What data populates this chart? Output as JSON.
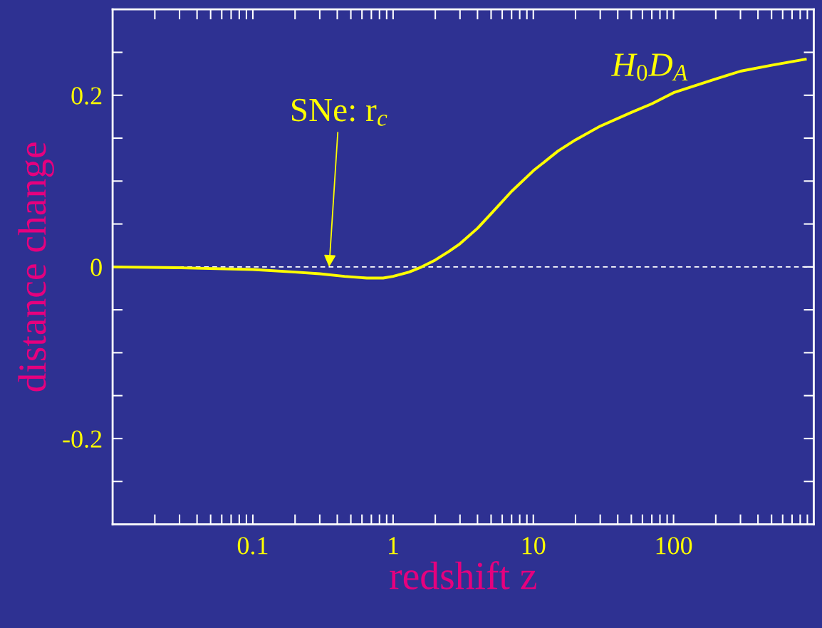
{
  "chart_data": {
    "type": "line",
    "xlabel": "redshift z",
    "ylabel": "distance change",
    "log": "x",
    "x": [
      0.01,
      0.03,
      0.1,
      0.2,
      0.3,
      0.45,
      0.65,
      0.85,
      1,
      1.3,
      1.6,
      2,
      2.5,
      3,
      4,
      5,
      7,
      10,
      15,
      20,
      30,
      50,
      70,
      100,
      200,
      300,
      500,
      870
    ],
    "series": [
      {
        "name": "H$_{0}$D$_{A}$",
        "color": "#ffff00",
        "values": [
          0,
          -0.001,
          -0.003,
          -0.006,
          -0.008,
          -0.011,
          -0.013,
          -0.013,
          -0.011,
          -0.006,
          0,
          0.008,
          0.018,
          0.027,
          0.045,
          0.062,
          0.088,
          0.112,
          0.135,
          0.148,
          0.164,
          0.18,
          0.19,
          0.203,
          0.219,
          0.228,
          0.235,
          0.242
        ]
      }
    ],
    "xlim": [
      0.01,
      1000
    ],
    "ylim": [
      -0.3,
      0.3
    ],
    "xticks": [
      {
        "value": 0.02,
        "label": null
      },
      {
        "value": 0.03,
        "label": null
      },
      {
        "value": 0.04,
        "label": null
      },
      {
        "value": 0.05,
        "label": null
      },
      {
        "value": 0.06,
        "label": null
      },
      {
        "value": 0.07,
        "label": null
      },
      {
        "value": 0.08,
        "label": null
      },
      {
        "value": 0.09,
        "label": null
      },
      0.1,
      {
        "value": 0.2,
        "label": null
      },
      {
        "value": 0.3,
        "label": null
      },
      {
        "value": 0.4,
        "label": null
      },
      {
        "value": 0.5,
        "label": null
      },
      {
        "value": 0.6,
        "label": null
      },
      {
        "value": 0.7,
        "label": null
      },
      {
        "value": 0.8,
        "label": null
      },
      {
        "value": 0.9,
        "label": null
      },
      1,
      {
        "value": 2,
        "label": null
      },
      {
        "value": 3,
        "label": null
      },
      {
        "value": 4,
        "label": null
      },
      {
        "value": 5,
        "label": null
      },
      {
        "value": 6,
        "label": null
      },
      {
        "value": 7,
        "label": null
      },
      {
        "value": 8,
        "label": null
      },
      {
        "value": 9,
        "label": null
      },
      10,
      {
        "value": 20,
        "label": null
      },
      {
        "value": 30,
        "label": null
      },
      {
        "value": 40,
        "label": null
      },
      {
        "value": 50,
        "label": null
      },
      {
        "value": 60,
        "label": null
      },
      {
        "value": 70,
        "label": null
      },
      {
        "value": 80,
        "label": null
      },
      {
        "value": 90,
        "label": null
      },
      100,
      {
        "value": 200,
        "label": null
      },
      {
        "value": 300,
        "label": null
      },
      {
        "value": 400,
        "label": null
      },
      {
        "value": 500,
        "label": null
      },
      {
        "value": 600,
        "label": null
      },
      {
        "value": 700,
        "label": null
      },
      {
        "value": 800,
        "label": null
      },
      {
        "value": 900,
        "label": null
      }
    ],
    "yticks": [
      {
        "value": -0.25,
        "label": null
      },
      {
        "value": -0.2,
        "label": "-0.2"
      },
      {
        "value": -0.15,
        "label": null
      },
      {
        "value": -0.1,
        "label": null
      },
      {
        "value": -0.05,
        "label": null
      },
      {
        "value": 0,
        "label": "0"
      },
      {
        "value": 0.05,
        "label": null
      },
      {
        "value": 0.1,
        "label": null
      },
      {
        "value": 0.15,
        "label": null
      },
      {
        "value": 0.2,
        "label": "0.2"
      },
      {
        "value": 0.25,
        "label": null
      }
    ],
    "ref_lines": [
      {
        "axis": "y",
        "value": 0,
        "label": null,
        "color": "#ffffff",
        "line_style": "dashed"
      }
    ],
    "annotations": [
      {
        "text": "SNe: r$_{c}$",
        "x": 0.35,
        "y": 0
      }
    ],
    "grid": false,
    "legend": false,
    "marker": "none",
    "line_style": "solid"
  }
}
